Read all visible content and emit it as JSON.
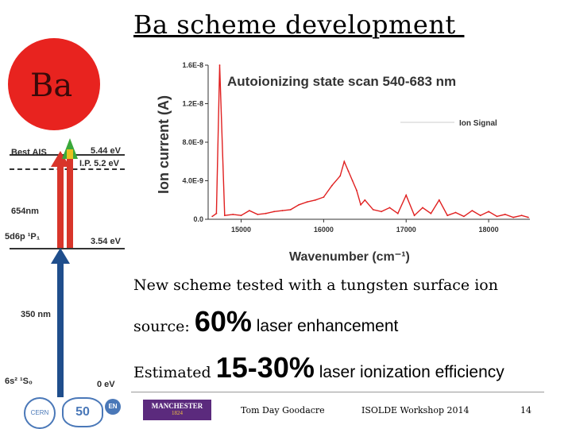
{
  "title": "Ba scheme development ",
  "scheme": {
    "element": "Ba",
    "levels": {
      "best_ais": "Best AIS",
      "ais_energy": "5.44 eV",
      "ip_label": "I.P. 5.2 eV",
      "step2_wavelength": "654nm",
      "intermediate_state": "5d6p ¹P₁",
      "intermediate_energy": "3.54 eV",
      "step1_wavelength": "350 nm",
      "ground_state": "6s² ¹S₀",
      "ground_energy": "0 eV"
    },
    "colors": {
      "element_circle": "#e8231f",
      "step_red": "#d8352a",
      "step_blue": "#1f4e8c",
      "step_green": "#3aa83a"
    }
  },
  "chart_data": {
    "type": "line",
    "title": "Autoionizing state scan 540-683 nm",
    "xlabel": "Wavenumber (cm⁻¹)",
    "ylabel": "Ion current (A)",
    "legend": "Ion Signal",
    "legend_position": "top-right",
    "xlim": [
      14600,
      18500
    ],
    "ylim": [
      0,
      1.6e-08
    ],
    "x_ticks": [
      "15000",
      "16000",
      "17000",
      "18000"
    ],
    "y_ticks": [
      "0.0",
      "4.0E-9",
      "8.0E-9",
      "1.2E-8",
      "1.6E-8"
    ],
    "series": [
      {
        "name": "Ion Signal",
        "color": "#e02020",
        "x": [
          14650,
          14700,
          14740,
          14800,
          14900,
          15000,
          15100,
          15200,
          15300,
          15400,
          15500,
          15600,
          15700,
          15800,
          15900,
          16000,
          16100,
          16200,
          16250,
          16300,
          16350,
          16400,
          16450,
          16500,
          16600,
          16700,
          16800,
          16900,
          17000,
          17100,
          17200,
          17300,
          17400,
          17500,
          17600,
          17700,
          17800,
          17900,
          18000,
          18100,
          18200,
          18300,
          18400,
          18480
        ],
        "y": [
          3e-10,
          6e-10,
          1.6e-08,
          4e-10,
          5e-10,
          4e-10,
          9e-10,
          5e-10,
          6e-10,
          8e-10,
          9e-10,
          1e-09,
          1.5e-09,
          1.8e-09,
          2e-09,
          2.3e-09,
          3.5e-09,
          4.5e-09,
          6e-09,
          5e-09,
          4e-09,
          3e-09,
          1.5e-09,
          2e-09,
          1e-09,
          8e-10,
          1.2e-09,
          6e-10,
          2.5e-09,
          4e-10,
          1.2e-09,
          6e-10,
          2e-09,
          4e-10,
          7e-10,
          3e-10,
          9e-10,
          4e-10,
          8e-10,
          3e-10,
          5e-10,
          2e-10,
          4e-10,
          2e-10
        ]
      }
    ]
  },
  "body": {
    "line1": "New scheme tested with a tungsten surface ion",
    "line2_prefix": "source: ",
    "line2_big": "60%",
    "line2_suffix": " laser enhancement",
    "line3_prefix": "Estimated ",
    "line3_big": "15-30%",
    "line3_suffix": " laser ionization efficiency"
  },
  "footer": {
    "author": "Tom Day Goodacre",
    "event": "ISOLDE Workshop 2014",
    "page": "14",
    "logos": {
      "cern": "CERN",
      "fifty": "50",
      "en": "EN",
      "manchester": "MANCHESTER",
      "manchester_year": "1824"
    }
  }
}
